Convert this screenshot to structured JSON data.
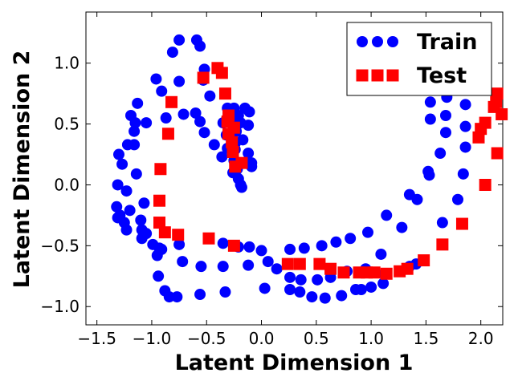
{
  "chart_data": {
    "type": "scatter",
    "title": "",
    "xlabel": "Latent Dimension 1",
    "ylabel": "Latent Dimension 2",
    "xlim": [
      -1.6,
      2.2
    ],
    "ylim": [
      -1.15,
      1.42
    ],
    "xticks": [
      -1.5,
      -1.0,
      -0.5,
      0.0,
      0.5,
      1.0,
      1.5,
      2.0
    ],
    "yticks": [
      -1.0,
      -0.5,
      0.0,
      0.5,
      1.0
    ],
    "xtick_labels": [
      "−1.5",
      "−1.0",
      "−0.5",
      "0.0",
      "0.5",
      "1.0",
      "1.5",
      "2.0"
    ],
    "ytick_labels": [
      "−1.0",
      "−0.5",
      "0.0",
      "0.5",
      "1.0"
    ],
    "grid": false,
    "legend_position": "top-right",
    "series": [
      {
        "name": "Train",
        "marker": "circle",
        "color": "#0000ff",
        "points": [
          [
            -0.75,
            1.19
          ],
          [
            -0.59,
            1.19
          ],
          [
            -0.56,
            1.14
          ],
          [
            -0.81,
            1.09
          ],
          [
            -0.52,
            0.95
          ],
          [
            -0.96,
            0.87
          ],
          [
            -0.75,
            0.85
          ],
          [
            -0.53,
            0.86
          ],
          [
            -0.91,
            0.77
          ],
          [
            -0.47,
            0.73
          ],
          [
            -1.13,
            0.67
          ],
          [
            -0.31,
            0.63
          ],
          [
            -0.25,
            0.63
          ],
          [
            -0.15,
            0.63
          ],
          [
            -0.11,
            0.6
          ],
          [
            -0.21,
            0.57
          ],
          [
            -0.26,
            0.55
          ],
          [
            -0.71,
            0.58
          ],
          [
            -0.6,
            0.59
          ],
          [
            -0.87,
            0.55
          ],
          [
            -1.19,
            0.57
          ],
          [
            -1.15,
            0.51
          ],
          [
            -1.05,
            0.51
          ],
          [
            -0.56,
            0.52
          ],
          [
            -0.35,
            0.51
          ],
          [
            -0.19,
            0.51
          ],
          [
            -0.12,
            0.49
          ],
          [
            -0.23,
            0.44
          ],
          [
            -0.52,
            0.43
          ],
          [
            -1.16,
            0.44
          ],
          [
            -0.32,
            0.41
          ],
          [
            -0.24,
            0.34
          ],
          [
            -0.17,
            0.37
          ],
          [
            -0.43,
            0.33
          ],
          [
            -1.22,
            0.33
          ],
          [
            -1.16,
            0.33
          ],
          [
            -0.31,
            0.3
          ],
          [
            -0.24,
            0.29
          ],
          [
            -0.12,
            0.26
          ],
          [
            -1.3,
            0.25
          ],
          [
            -0.36,
            0.23
          ],
          [
            -0.25,
            0.2
          ],
          [
            -0.09,
            0.18
          ],
          [
            -1.27,
            0.17
          ],
          [
            -0.22,
            0.13
          ],
          [
            -0.09,
            0.15
          ],
          [
            -1.14,
            0.09
          ],
          [
            -0.26,
            0.1
          ],
          [
            -0.21,
            0.05
          ],
          [
            -0.19,
            0.0
          ],
          [
            -0.18,
            -0.02
          ],
          [
            -1.31,
            0.0
          ],
          [
            -1.23,
            -0.05
          ],
          [
            -1.07,
            -0.15
          ],
          [
            -1.32,
            -0.18
          ],
          [
            -1.2,
            -0.21
          ],
          [
            -1.29,
            -0.25
          ],
          [
            -1.31,
            -0.27
          ],
          [
            -1.25,
            -0.31
          ],
          [
            -1.1,
            -0.29
          ],
          [
            -1.23,
            -0.37
          ],
          [
            -1.09,
            -0.37
          ],
          [
            -1.05,
            -0.4
          ],
          [
            -1.09,
            -0.44
          ],
          [
            -0.99,
            -0.49
          ],
          [
            -0.93,
            -0.52
          ],
          [
            -0.75,
            -0.49
          ],
          [
            -0.35,
            -0.48
          ],
          [
            -0.21,
            -0.51
          ],
          [
            -0.11,
            -0.51
          ],
          [
            0.0,
            -0.54
          ],
          [
            0.26,
            -0.53
          ],
          [
            0.39,
            -0.52
          ],
          [
            0.55,
            -0.5
          ],
          [
            0.68,
            -0.47
          ],
          [
            0.81,
            -0.44
          ],
          [
            0.97,
            -0.39
          ],
          [
            1.14,
            -0.25
          ],
          [
            1.28,
            -0.35
          ],
          [
            1.09,
            -0.57
          ],
          [
            1.35,
            -0.08
          ],
          [
            1.42,
            -0.12
          ],
          [
            1.52,
            0.11
          ],
          [
            1.53,
            0.08
          ],
          [
            1.63,
            0.26
          ],
          [
            1.65,
            -0.31
          ],
          [
            1.79,
            -0.12
          ],
          [
            1.84,
            0.09
          ],
          [
            1.86,
            0.31
          ],
          [
            1.86,
            0.48
          ],
          [
            1.68,
            0.57
          ],
          [
            1.68,
            0.43
          ],
          [
            1.54,
            0.54
          ],
          [
            1.54,
            0.68
          ],
          [
            1.69,
            0.72
          ],
          [
            1.86,
            0.66
          ],
          [
            1.58,
            0.8
          ],
          [
            -0.95,
            -0.58
          ],
          [
            -0.91,
            -0.53
          ],
          [
            -0.72,
            -0.63
          ],
          [
            -0.55,
            -0.67
          ],
          [
            -0.35,
            -0.67
          ],
          [
            -0.12,
            -0.66
          ],
          [
            0.06,
            -0.63
          ],
          [
            0.14,
            -0.69
          ],
          [
            0.26,
            -0.76
          ],
          [
            0.36,
            -0.78
          ],
          [
            0.51,
            -0.78
          ],
          [
            0.63,
            -0.76
          ],
          [
            0.78,
            -0.71
          ],
          [
            0.95,
            -0.69
          ],
          [
            1.12,
            -0.73
          ],
          [
            1.35,
            -0.67
          ],
          [
            1.41,
            -0.65
          ],
          [
            -0.94,
            -0.75
          ],
          [
            -0.88,
            -0.87
          ],
          [
            -0.84,
            -0.92
          ],
          [
            -0.77,
            -0.92
          ],
          [
            -0.56,
            -0.9
          ],
          [
            -0.33,
            -0.88
          ],
          [
            0.03,
            -0.85
          ],
          [
            0.26,
            -0.86
          ],
          [
            0.35,
            -0.88
          ],
          [
            0.46,
            -0.92
          ],
          [
            0.58,
            -0.93
          ],
          [
            0.73,
            -0.91
          ],
          [
            0.86,
            -0.86
          ],
          [
            0.91,
            -0.86
          ],
          [
            1.0,
            -0.84
          ],
          [
            1.11,
            -0.81
          ]
        ]
      },
      {
        "name": "Test",
        "marker": "square",
        "color": "#ff0000",
        "points": [
          [
            -0.4,
            0.96
          ],
          [
            -0.36,
            0.92
          ],
          [
            -0.53,
            0.88
          ],
          [
            -0.33,
            0.75
          ],
          [
            -0.82,
            0.68
          ],
          [
            -0.3,
            0.57
          ],
          [
            -0.31,
            0.52
          ],
          [
            -0.25,
            0.47
          ],
          [
            -0.3,
            0.42
          ],
          [
            -0.85,
            0.42
          ],
          [
            -0.27,
            0.35
          ],
          [
            -0.26,
            0.27
          ],
          [
            -0.18,
            0.18
          ],
          [
            -0.24,
            0.15
          ],
          [
            -0.92,
            0.13
          ],
          [
            -0.93,
            -0.13
          ],
          [
            -0.93,
            -0.31
          ],
          [
            -0.88,
            -0.39
          ],
          [
            -0.76,
            -0.41
          ],
          [
            -0.48,
            -0.44
          ],
          [
            -0.25,
            -0.5
          ],
          [
            0.24,
            -0.65
          ],
          [
            0.35,
            -0.65
          ],
          [
            0.53,
            -0.65
          ],
          [
            0.63,
            -0.69
          ],
          [
            0.75,
            -0.72
          ],
          [
            0.89,
            -0.72
          ],
          [
            0.96,
            -0.72
          ],
          [
            1.03,
            -0.72
          ],
          [
            1.14,
            -0.73
          ],
          [
            1.26,
            -0.71
          ],
          [
            1.33,
            -0.69
          ],
          [
            1.48,
            -0.62
          ],
          [
            1.65,
            -0.49
          ],
          [
            1.83,
            -0.32
          ],
          [
            2.04,
            0.0
          ],
          [
            2.15,
            0.26
          ],
          [
            1.98,
            0.39
          ],
          [
            2.0,
            0.46
          ],
          [
            2.04,
            0.51
          ],
          [
            2.12,
            0.64
          ],
          [
            2.14,
            0.68
          ],
          [
            2.15,
            0.75
          ],
          [
            2.19,
            0.58
          ]
        ]
      }
    ]
  }
}
